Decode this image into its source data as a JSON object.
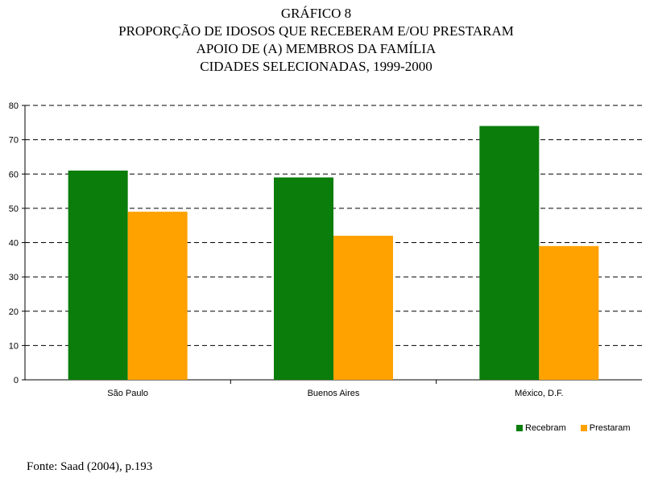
{
  "header": {
    "line1": "GRÁFICO 8",
    "line2": "PROPORÇÃO DE IDOSOS QUE RECEBERAM E/OU PRESTARAM",
    "line3": "APOIO DE (A) MEMBROS DA FAMÍLIA",
    "line4": "CIDADES SELECIONADAS, 1999-2000"
  },
  "source": "Fonte: Saad (2004), p.193",
  "colors": {
    "recebram": "#0a7d0a",
    "prestaram": "#ffa200"
  },
  "chart_data": {
    "type": "bar",
    "title": "GRÁFICO 8 PROPORÇÃO DE IDOSOS QUE RECEBERAM E/OU PRESTARAM APOIO DE (A) MEMBROS DA FAMÍLIA CIDADES SELECIONADAS, 1999-2000",
    "categories": [
      "São Paulo",
      "Buenos Aires",
      "México, D.F."
    ],
    "series": [
      {
        "name": "Recebram",
        "values": [
          61,
          59,
          74
        ]
      },
      {
        "name": "Prestaram",
        "values": [
          49,
          42,
          39
        ]
      }
    ],
    "ylim": [
      0,
      80
    ],
    "yticks": [
      0,
      10,
      20,
      30,
      40,
      50,
      60,
      70,
      80
    ],
    "grid": "dashed-horizontal",
    "legend": "bottom-right"
  }
}
